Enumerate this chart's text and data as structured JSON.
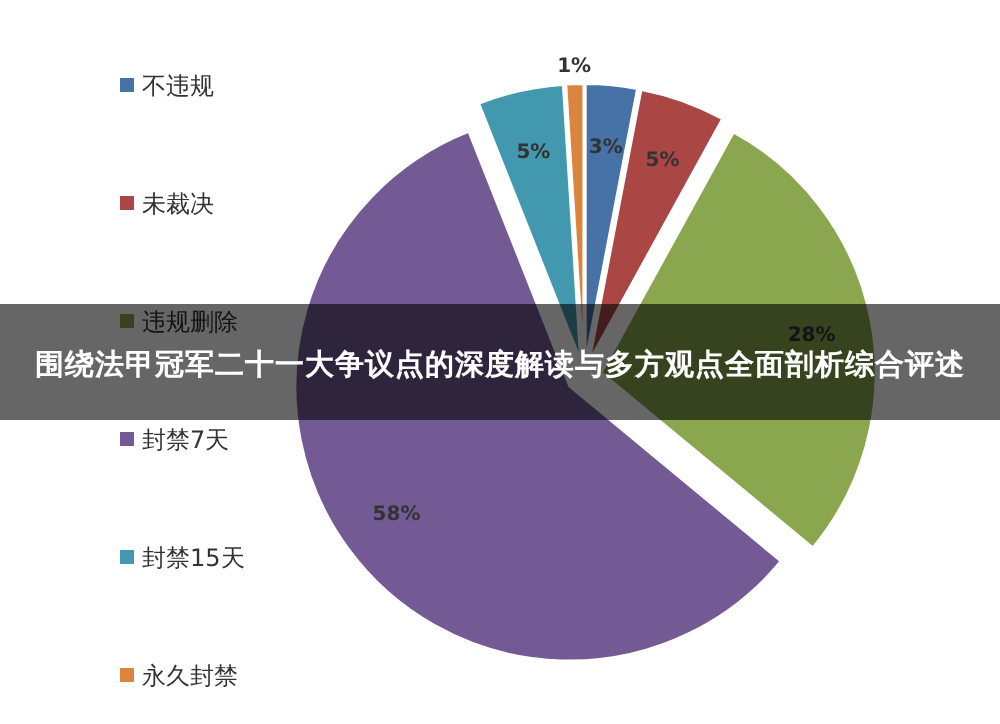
{
  "chart_data": {
    "type": "pie",
    "title": "围绕法甲冠军二十一大争议点的深度解读与多方观点全面剖析综合评述",
    "categories": [
      "不违规",
      "未裁决",
      "违规删除",
      "封禁7天",
      "封禁15天",
      "永久封禁"
    ],
    "values": [
      3,
      5,
      28,
      58,
      5,
      1
    ],
    "colors": [
      "#4672a8",
      "#aa4644",
      "#8aa64e",
      "#735a94",
      "#4198af",
      "#db843d"
    ],
    "value_labels": [
      "3%",
      "5%",
      "28%",
      "58%",
      "5%",
      "1%"
    ],
    "legend": "left"
  }
}
